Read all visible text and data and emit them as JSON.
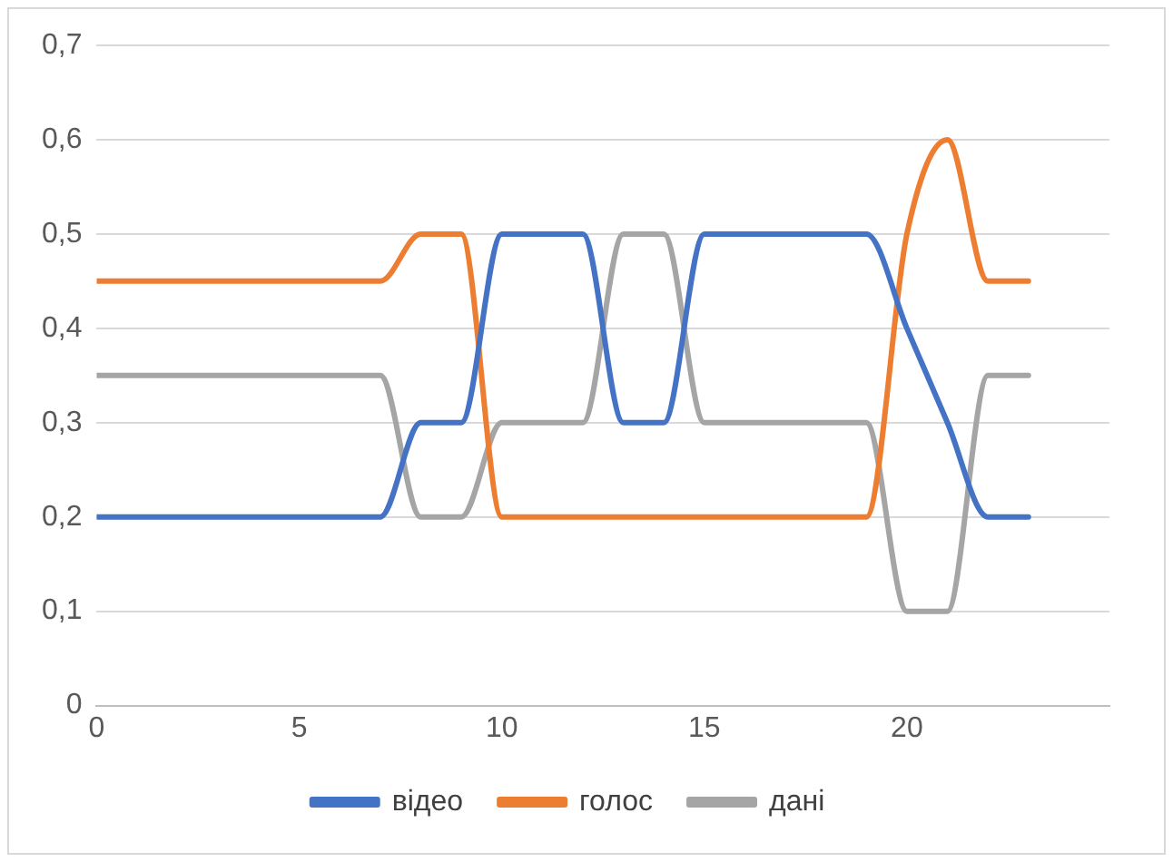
{
  "chart_data": {
    "type": "line",
    "x": [
      0,
      1,
      2,
      3,
      4,
      5,
      6,
      7,
      8,
      9,
      10,
      11,
      12,
      13,
      14,
      15,
      16,
      17,
      18,
      19,
      20,
      21,
      22,
      23
    ],
    "series": [
      {
        "name": "відео",
        "color": "#4472c4",
        "values": [
          0.2,
          0.2,
          0.2,
          0.2,
          0.2,
          0.2,
          0.2,
          0.2,
          0.3,
          0.3,
          0.5,
          0.5,
          0.5,
          0.3,
          0.3,
          0.5,
          0.5,
          0.5,
          0.5,
          0.5,
          0.4,
          0.3,
          0.2,
          0.2
        ]
      },
      {
        "name": "голос",
        "color": "#ed7d31",
        "values": [
          0.45,
          0.45,
          0.45,
          0.45,
          0.45,
          0.45,
          0.45,
          0.45,
          0.5,
          0.5,
          0.2,
          0.2,
          0.2,
          0.2,
          0.2,
          0.2,
          0.2,
          0.2,
          0.2,
          0.2,
          0.5,
          0.6,
          0.45,
          0.45
        ]
      },
      {
        "name": "дані",
        "color": "#a5a5a5",
        "values": [
          0.35,
          0.35,
          0.35,
          0.35,
          0.35,
          0.35,
          0.35,
          0.35,
          0.2,
          0.2,
          0.3,
          0.3,
          0.3,
          0.5,
          0.5,
          0.3,
          0.3,
          0.3,
          0.3,
          0.3,
          0.1,
          0.1,
          0.35,
          0.35
        ]
      }
    ],
    "xlim": [
      0,
      25
    ],
    "xticks": [
      0,
      5,
      10,
      15,
      20
    ],
    "ylim": [
      0,
      0.7
    ],
    "yticks": [
      {
        "value": 0,
        "label": "0"
      },
      {
        "value": 0.1,
        "label": "0,1"
      },
      {
        "value": 0.2,
        "label": "0,2"
      },
      {
        "value": 0.3,
        "label": "0,3"
      },
      {
        "value": 0.4,
        "label": "0,4"
      },
      {
        "value": 0.5,
        "label": "0,5"
      },
      {
        "value": 0.6,
        "label": "0,6"
      },
      {
        "value": 0.7,
        "label": "0,7"
      }
    ],
    "grid": "y",
    "legend": "bottom",
    "marker": "none",
    "line_style": "solid"
  }
}
